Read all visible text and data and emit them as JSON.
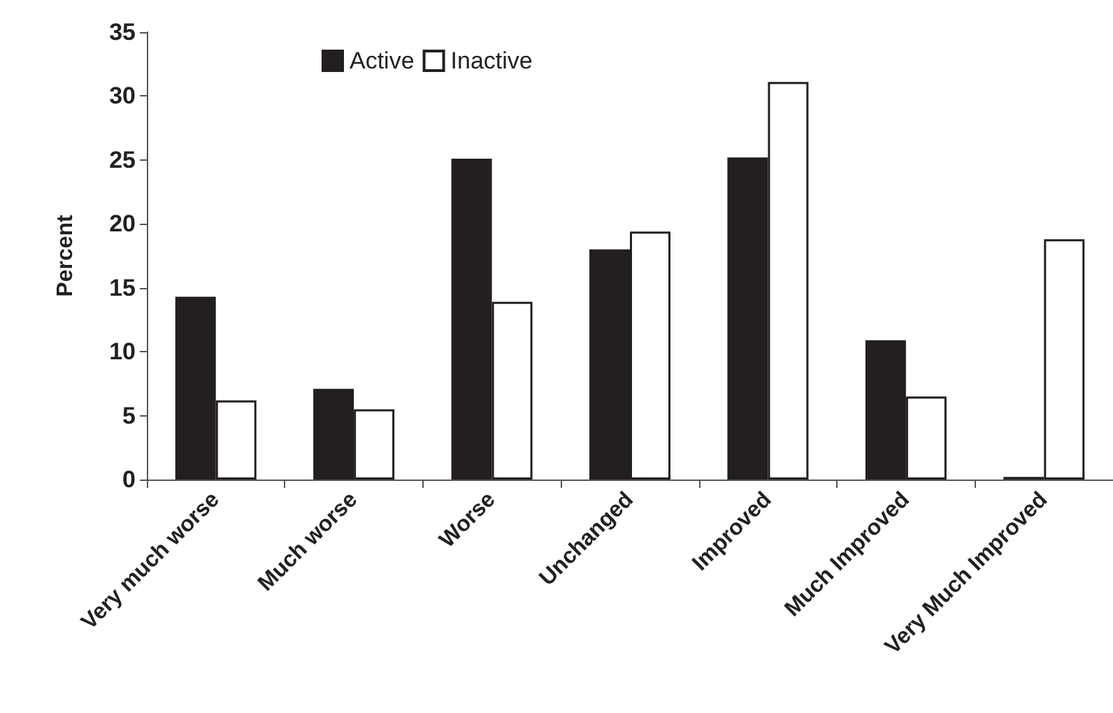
{
  "chart_data": {
    "type": "bar",
    "ylabel": "Percent",
    "categories": [
      "Very much worse",
      "Much worse",
      "Worse",
      "Unchanged",
      "Improved",
      "Much Improved",
      "Very Much Improved"
    ],
    "series": [
      {
        "name": "Active",
        "color": "#231f20",
        "values": [
          14.3,
          7.1,
          25.1,
          18.0,
          25.2,
          10.9,
          0.2
        ]
      },
      {
        "name": "Inactive",
        "color": "#ffffff",
        "values": [
          6.2,
          5.5,
          13.9,
          19.4,
          31.1,
          6.5,
          18.8
        ]
      }
    ],
    "ylim": [
      0,
      35
    ],
    "yticks": [
      0,
      5,
      10,
      15,
      20,
      25,
      30,
      35
    ],
    "grid": false,
    "legend": "top"
  }
}
